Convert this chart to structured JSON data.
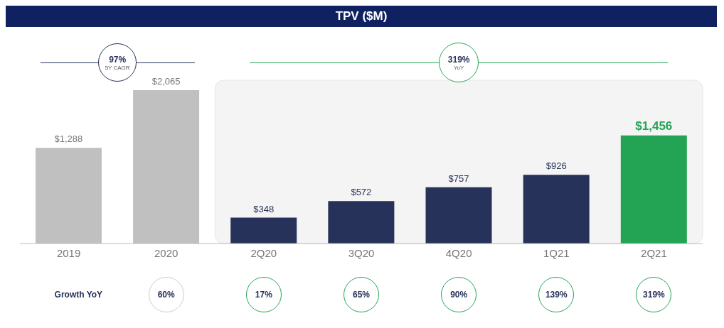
{
  "chart_data": {
    "type": "bar",
    "title": "TPV ($M)",
    "categories": [
      "2019",
      "2020",
      "2Q20",
      "3Q20",
      "4Q20",
      "1Q21",
      "2Q21"
    ],
    "values": [
      1288,
      2065,
      348,
      572,
      757,
      926,
      1456
    ],
    "colors": [
      "#c0c0c0",
      "#c0c0c0",
      "#263259",
      "#263259",
      "#263259",
      "#263259",
      "#23a455"
    ],
    "value_labels": [
      "$1,288",
      "$2,065",
      "$348",
      "$572",
      "$757",
      "$926",
      "$1,456"
    ],
    "bands": [
      {
        "axis": "x",
        "from": "2Q20",
        "to": "2Q21",
        "color": "#f4f4f4"
      }
    ],
    "annotations": [
      "97%",
      "5Y CAGR",
      "319%",
      "YoY",
      "Growth YoY",
      "60%",
      "17%",
      "65%",
      "90%",
      "139%",
      "319%"
    ]
  }
}
